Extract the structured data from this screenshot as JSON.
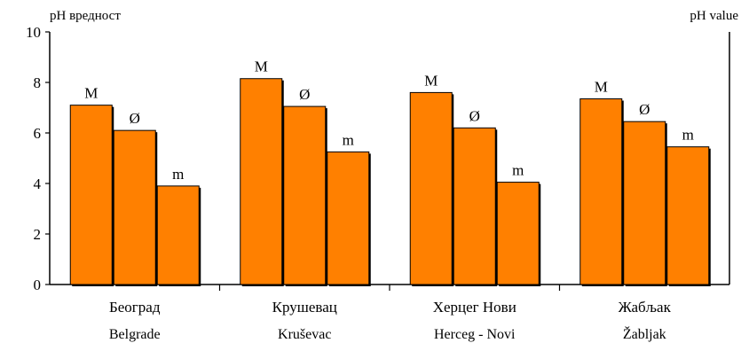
{
  "chart_data": {
    "type": "bar",
    "ylabel_left": "pH вредност",
    "ylabel_right": "pH value",
    "ylim": [
      0,
      10
    ],
    "yticks": [
      0,
      2,
      4,
      6,
      8,
      10
    ],
    "grid": false,
    "legend": "none",
    "bar_color": "#ff8000",
    "categories": [
      {
        "label_cyrillic": "Београд",
        "label_latin": "Belgrade"
      },
      {
        "label_cyrillic": "Крушевац",
        "label_latin": "Kruševac"
      },
      {
        "label_cyrillic": "Херцег Нови",
        "label_latin": "Herceg - Novi"
      },
      {
        "label_cyrillic": "Жабљак",
        "label_latin": "Žabljak"
      }
    ],
    "series": [
      {
        "marker": "M",
        "values": [
          7.1,
          8.15,
          7.6,
          7.35
        ]
      },
      {
        "marker": "Ø",
        "values": [
          6.1,
          7.05,
          6.2,
          6.45
        ]
      },
      {
        "marker": "m",
        "values": [
          3.9,
          5.25,
          4.05,
          5.45
        ]
      }
    ]
  }
}
